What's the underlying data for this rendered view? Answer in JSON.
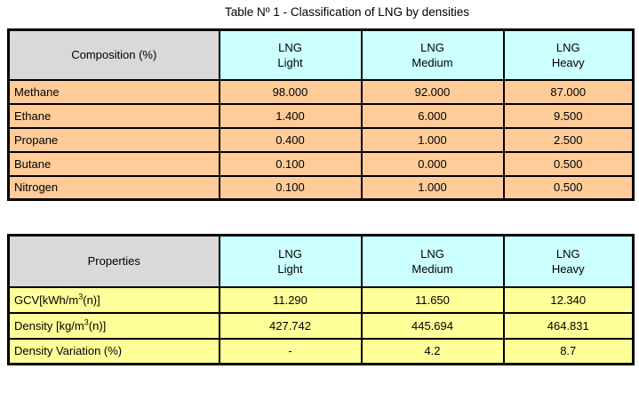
{
  "title": "Table Nº 1 - Classification of LNG by densities",
  "colors": {
    "header_gray": "#d9d9d9",
    "header_cyan": "#ccffff",
    "body_orange": "#ffcc99",
    "body_yellow": "#ffff99",
    "border": "#000000",
    "background": "#ffffff"
  },
  "composition_table": {
    "corner_label": "Composition (%)",
    "column_headers": [
      "LNG\nLight",
      "LNG\nMedium",
      "LNG\nHeavy"
    ],
    "rows": [
      {
        "label": "Methane",
        "values": [
          "98.000",
          "92.000",
          "87.000"
        ]
      },
      {
        "label": "Ethane",
        "values": [
          "1.400",
          "6.000",
          "9.500"
        ]
      },
      {
        "label": "Propane",
        "values": [
          "0.400",
          "1.000",
          "2.500"
        ]
      },
      {
        "label": "Butane",
        "values": [
          "0.100",
          "0.000",
          "0.500"
        ]
      },
      {
        "label": "Nitrogen",
        "values": [
          "0.100",
          "1.000",
          "0.500"
        ]
      }
    ]
  },
  "properties_table": {
    "corner_label": "Properties",
    "column_headers": [
      "LNG\nLight",
      "LNG\nMedium",
      "LNG\nHeavy"
    ],
    "rows": [
      {
        "label_prefix": "GCV[kWh/m",
        "label_sup": "3",
        "label_suffix": "(n)]",
        "values": [
          "11.290",
          "11.650",
          "12.340"
        ]
      },
      {
        "label_prefix": "Density [kg/m",
        "label_sup": "3",
        "label_suffix": "(n)]",
        "values": [
          "427.742",
          "445.694",
          "464.831"
        ]
      },
      {
        "label_prefix": "Density Variation (%)",
        "label_sup": "",
        "label_suffix": "",
        "values": [
          "-",
          "4.2",
          "8.7"
        ]
      }
    ]
  }
}
